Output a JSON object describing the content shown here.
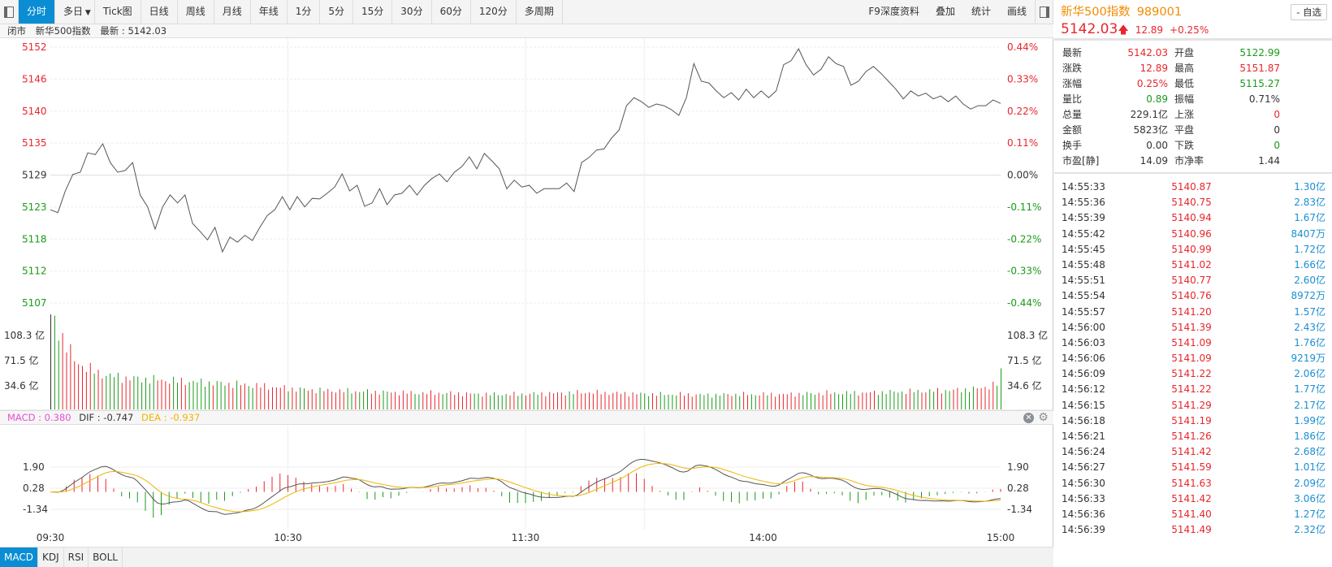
{
  "toolbar": {
    "items": [
      "分时",
      "多日",
      "Tick图",
      "日线",
      "周线",
      "月线",
      "年线",
      "1分",
      "5分",
      "15分",
      "30分",
      "60分",
      "120分",
      "多周期"
    ],
    "right_items": [
      "F9深度资料",
      "叠加",
      "统计",
      "画线"
    ]
  },
  "info": {
    "status": "闭市",
    "name": "新华500指数",
    "latest": "最新 : 5142.03"
  },
  "colors": {
    "up": "#e8262c",
    "down": "#1a9a1a",
    "accent": "#0a8dd3",
    "price_line": "#555555",
    "dea": "#f0b400",
    "macd_label": "#e84fd0"
  },
  "chart_data": {
    "type": "line",
    "title": "新华500指数 分时",
    "prev_close": 5129.14,
    "ylim": [
      5107,
      5152
    ],
    "y_ticks": [
      "5152",
      "5146",
      "5140",
      "5135",
      "5129",
      "5123",
      "5118",
      "5112",
      "5107"
    ],
    "pct_ticks": [
      "0.44%",
      "0.33%",
      "0.22%",
      "0.11%",
      "0.00%",
      "-0.11%",
      "-0.22%",
      "-0.33%",
      "-0.44%"
    ],
    "x_ticks": [
      "09:30",
      "10:30",
      "11:30",
      "14:00",
      "15:00"
    ],
    "prices": [
      5123.4,
      5122.9,
      5126.7,
      5129.6,
      5130.0,
      5133.4,
      5133.1,
      5135.0,
      5131.7,
      5130.0,
      5130.3,
      5131.7,
      5126.0,
      5123.9,
      5120.0,
      5123.9,
      5126.0,
      5124.6,
      5126.0,
      5121.0,
      5119.6,
      5118.1,
      5120.3,
      5116.0,
      5118.6,
      5117.7,
      5118.9,
      5118.0,
      5120.3,
      5122.4,
      5123.4,
      5125.7,
      5123.4,
      5125.7,
      5123.9,
      5125.4,
      5125.3,
      5126.3,
      5127.4,
      5129.7,
      5126.7,
      5127.7,
      5124.0,
      5124.6,
      5127.1,
      5124.3,
      5126.0,
      5126.3,
      5127.7,
      5126.0,
      5127.7,
      5128.9,
      5129.7,
      5128.3,
      5130.0,
      5131.0,
      5132.7,
      5130.6,
      5133.3,
      5132.0,
      5130.6,
      5127.1,
      5128.6,
      5127.4,
      5127.7,
      5126.3,
      5127.1,
      5127.1,
      5127.1,
      5128.1,
      5126.6,
      5131.7,
      5132.6,
      5133.9,
      5134.1,
      5136.0,
      5137.4,
      5141.7,
      5143.1,
      5142.4,
      5141.4,
      5142.0,
      5141.7,
      5141.0,
      5140.0,
      5143.1,
      5149.1,
      5146.0,
      5145.7,
      5144.3,
      5143.1,
      5144.0,
      5142.7,
      5144.6,
      5143.1,
      5144.3,
      5143.1,
      5144.3,
      5148.9,
      5149.6,
      5151.7,
      5148.9,
      5147.1,
      5148.1,
      5150.3,
      5149.1,
      5148.6,
      5145.3,
      5146.0,
      5147.7,
      5148.6,
      5147.4,
      5146.0,
      5144.6,
      5142.9,
      5144.3,
      5143.4,
      5143.9,
      5142.9,
      5143.4,
      5142.4,
      5143.4,
      5142.0,
      5141.1,
      5141.7,
      5141.7,
      5142.7,
      5142.1
    ],
    "volume": {
      "unit": "亿",
      "ticks": [
        "108.3 亿",
        "71.5 亿",
        "34.6 亿"
      ],
      "values": [
        139,
        70,
        52,
        46,
        44,
        42,
        40,
        38,
        36,
        33,
        30,
        28,
        27,
        26,
        25,
        24,
        24,
        23,
        22,
        22,
        23,
        24,
        25,
        24,
        23,
        22,
        22,
        21,
        22,
        22,
        22,
        23,
        24,
        24,
        25,
        26,
        27,
        28,
        30,
        38
      ]
    },
    "macd": {
      "label": "MACD : 0.380",
      "dif": "DIF : -0.747",
      "dea": "DEA : -0.937",
      "ticks": [
        "1.90",
        "0.28",
        "-1.34"
      ]
    }
  },
  "macd_tabs": [
    "MACD",
    "KDJ",
    "RSI",
    "BOLL"
  ],
  "quote": {
    "name": "新华500指数",
    "code": "989001",
    "price": "5142.03",
    "arrow": "🡅",
    "change": "12.89",
    "pct": "+0.25%",
    "fav": "- 自选",
    "stats": [
      {
        "l": "最新",
        "v": "5142.03",
        "vc": "red",
        "l2": "开盘",
        "v2": "5122.99",
        "v2c": "green"
      },
      {
        "l": "涨跌",
        "v": "12.89",
        "vc": "red",
        "l2": "最高",
        "v2": "5151.87",
        "v2c": "red"
      },
      {
        "l": "涨幅",
        "v": "0.25%",
        "vc": "red",
        "l2": "最低",
        "v2": "5115.27",
        "v2c": "green"
      },
      {
        "l": "量比",
        "v": "0.89",
        "vc": "green",
        "l2": "振幅",
        "v2": "0.71%",
        "v2c": "blk"
      },
      {
        "l": "总量",
        "v": "229.1亿",
        "vc": "blk",
        "l2": "上涨",
        "v2": "0",
        "v2c": "red"
      },
      {
        "l": "金额",
        "v": "5823亿",
        "vc": "blk",
        "l2": "平盘",
        "v2": "0",
        "v2c": "blk"
      },
      {
        "l": "换手",
        "v": "0.00",
        "vc": "blk",
        "l2": "下跌",
        "v2": "0",
        "v2c": "green"
      },
      {
        "l": "市盈[静]",
        "v": "14.09",
        "vc": "blk",
        "l2": "市净率",
        "v2": "1.44",
        "v2c": "blk"
      }
    ],
    "ticks": [
      [
        "14:55:33",
        "5140.87",
        "1.30亿"
      ],
      [
        "14:55:36",
        "5140.75",
        "2.83亿"
      ],
      [
        "14:55:39",
        "5140.94",
        "1.67亿"
      ],
      [
        "14:55:42",
        "5140.96",
        "8407万"
      ],
      [
        "14:55:45",
        "5140.99",
        "1.72亿"
      ],
      [
        "14:55:48",
        "5141.02",
        "1.66亿"
      ],
      [
        "14:55:51",
        "5140.77",
        "2.60亿"
      ],
      [
        "14:55:54",
        "5140.76",
        "8972万"
      ],
      [
        "14:55:57",
        "5141.20",
        "1.57亿"
      ],
      [
        "14:56:00",
        "5141.39",
        "2.43亿"
      ],
      [
        "14:56:03",
        "5141.09",
        "1.76亿"
      ],
      [
        "14:56:06",
        "5141.09",
        "9219万"
      ],
      [
        "14:56:09",
        "5141.22",
        "2.06亿"
      ],
      [
        "14:56:12",
        "5141.22",
        "1.77亿"
      ],
      [
        "14:56:15",
        "5141.29",
        "2.17亿"
      ],
      [
        "14:56:18",
        "5141.19",
        "1.99亿"
      ],
      [
        "14:56:21",
        "5141.26",
        "1.86亿"
      ],
      [
        "14:56:24",
        "5141.42",
        "2.68亿"
      ],
      [
        "14:56:27",
        "5141.59",
        "1.01亿"
      ],
      [
        "14:56:30",
        "5141.63",
        "2.09亿"
      ],
      [
        "14:56:33",
        "5141.42",
        "3.06亿"
      ],
      [
        "14:56:36",
        "5141.40",
        "1.27亿"
      ],
      [
        "14:56:39",
        "5141.49",
        "2.32亿"
      ]
    ]
  }
}
